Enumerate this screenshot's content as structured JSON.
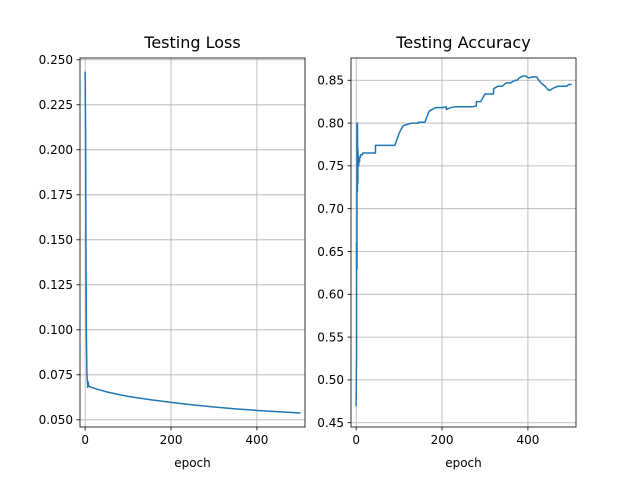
{
  "chart_data": [
    {
      "type": "line",
      "title": "Testing Loss",
      "xlabel": "epoch",
      "ylabel": "",
      "xlim": [
        -12,
        512
      ],
      "ylim": [
        0.046,
        0.251
      ],
      "xticks": [
        0,
        200,
        400
      ],
      "yticks": [
        0.05,
        0.075,
        0.1,
        0.125,
        0.15,
        0.175,
        0.2,
        0.225,
        0.25
      ],
      "ytick_labels": [
        "0.050",
        "0.075",
        "0.100",
        "0.125",
        "0.150",
        "0.175",
        "0.200",
        "0.225",
        "0.250"
      ],
      "grid": true,
      "color": "#1f77b4",
      "series": [
        {
          "x": [
            0,
            1,
            2,
            3,
            4,
            5,
            6,
            7,
            8,
            10,
            15,
            25,
            50,
            75,
            100,
            150,
            200,
            250,
            300,
            350,
            400,
            450,
            500
          ],
          "y": [
            0.243,
            0.21,
            0.14,
            0.095,
            0.076,
            0.072,
            0.068,
            0.071,
            0.069,
            0.0685,
            0.068,
            0.0672,
            0.0655,
            0.0642,
            0.063,
            0.0612,
            0.0597,
            0.0583,
            0.0571,
            0.0561,
            0.0552,
            0.0545,
            0.0538
          ]
        }
      ]
    },
    {
      "type": "line",
      "title": "Testing Accuracy",
      "xlabel": "epoch",
      "ylabel": "",
      "xlim": [
        -12,
        512
      ],
      "ylim": [
        0.445,
        0.876
      ],
      "xticks": [
        0,
        200,
        400
      ],
      "yticks": [
        0.45,
        0.5,
        0.55,
        0.6,
        0.65,
        0.7,
        0.75,
        0.8,
        0.85
      ],
      "ytick_labels": [
        "0.45",
        "0.50",
        "0.55",
        "0.60",
        "0.65",
        "0.70",
        "0.75",
        "0.80",
        "0.85"
      ],
      "grid": true,
      "color": "#1f77b4",
      "series": [
        {
          "x": [
            0,
            1,
            1,
            2,
            2,
            3,
            3,
            4,
            4,
            5,
            5,
            6,
            6,
            7,
            7,
            8,
            8,
            10,
            10,
            15,
            15,
            20,
            20,
            45,
            45,
            60,
            60,
            90,
            90,
            100,
            105,
            110,
            130,
            145,
            145,
            160,
            170,
            185,
            195,
            200,
            210,
            210,
            220,
            230,
            260,
            270,
            280,
            280,
            290,
            300,
            305,
            320,
            320,
            330,
            335,
            340,
            345,
            350,
            360,
            370,
            375,
            380,
            390,
            395,
            400,
            405,
            410,
            415,
            420,
            430,
            440,
            445,
            450,
            460,
            470,
            480,
            490,
            495,
            500
          ],
          "y": [
            0.47,
            0.53,
            0.66,
            0.63,
            0.8,
            0.72,
            0.8,
            0.73,
            0.77,
            0.75,
            0.76,
            0.75,
            0.76,
            0.755,
            0.76,
            0.755,
            0.76,
            0.76,
            0.763,
            0.763,
            0.765,
            0.765,
            0.765,
            0.765,
            0.774,
            0.774,
            0.774,
            0.774,
            0.774,
            0.788,
            0.793,
            0.797,
            0.8,
            0.8,
            0.801,
            0.801,
            0.814,
            0.818,
            0.818,
            0.818,
            0.819,
            0.816,
            0.818,
            0.819,
            0.819,
            0.819,
            0.82,
            0.825,
            0.825,
            0.834,
            0.834,
            0.834,
            0.84,
            0.843,
            0.843,
            0.843,
            0.845,
            0.847,
            0.847,
            0.85,
            0.85,
            0.853,
            0.855,
            0.855,
            0.853,
            0.853,
            0.854,
            0.854,
            0.854,
            0.847,
            0.843,
            0.84,
            0.838,
            0.841,
            0.843,
            0.843,
            0.843,
            0.845,
            0.845
          ]
        }
      ]
    }
  ]
}
